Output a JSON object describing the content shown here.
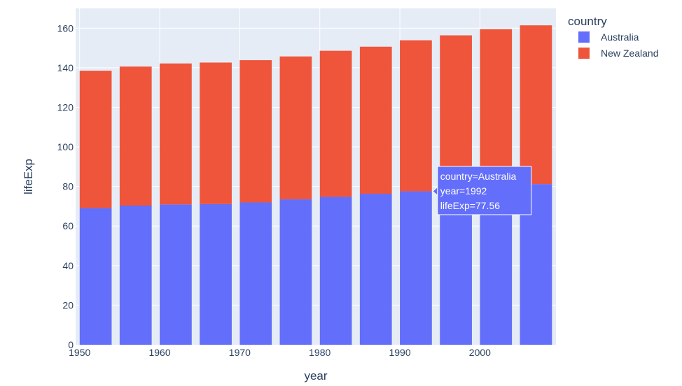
{
  "chart_data": {
    "type": "bar",
    "barmode": "stack",
    "x": [
      1952,
      1957,
      1962,
      1967,
      1972,
      1977,
      1982,
      1987,
      1992,
      1997,
      2002,
      2007
    ],
    "series": [
      {
        "name": "Australia",
        "color": "#636efa",
        "values": [
          69.12,
          70.33,
          70.93,
          71.1,
          71.93,
          73.49,
          74.74,
          76.32,
          77.56,
          78.83,
          80.37,
          81.235
        ]
      },
      {
        "name": "New Zealand",
        "color": "#ef553b",
        "values": [
          69.39,
          70.26,
          71.24,
          71.52,
          71.89,
          72.22,
          73.84,
          74.32,
          76.33,
          77.55,
          79.11,
          80.204
        ]
      }
    ],
    "xlabel": "year",
    "ylabel": "lifeExp",
    "xlim": [
      1949.5,
      2009.5
    ],
    "ylim": [
      0,
      170
    ],
    "x_ticks": [
      1950,
      1960,
      1970,
      1980,
      1990,
      2000
    ],
    "y_ticks": [
      0,
      20,
      40,
      60,
      80,
      100,
      120,
      140,
      160
    ],
    "grid": true,
    "legend_title": "country",
    "legend_position": "top-right",
    "plot_background": "#e5ecf6",
    "hover": {
      "lines": [
        "country=Australia",
        "year=1992",
        "lifeExp=77.56"
      ],
      "series_index": 0,
      "x": 1992,
      "y": 77.56
    }
  }
}
